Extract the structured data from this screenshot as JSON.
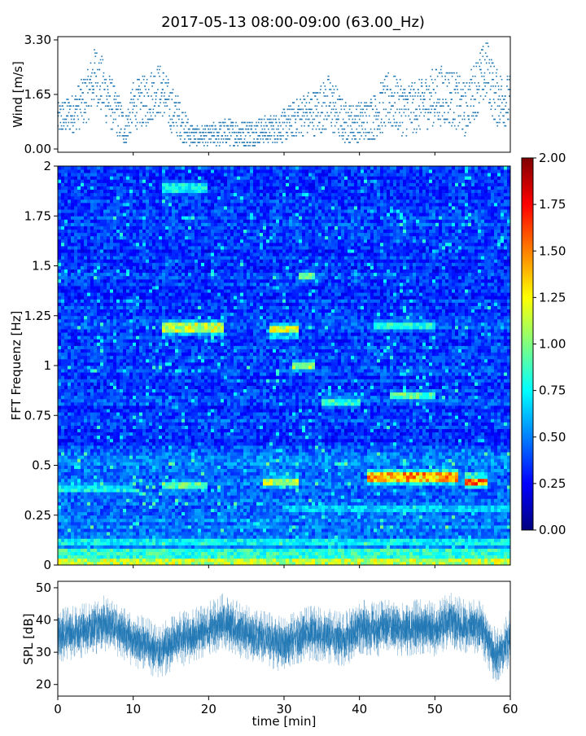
{
  "title": "2017-05-13 08:00-09:00 (63.00_Hz)",
  "colors": {
    "wind": "#1f77b4",
    "spl": "#1f77b4",
    "axis": "#000000"
  },
  "chart_data": [
    {
      "type": "scatter",
      "ylabel": "Wind [m/s]",
      "xlim": [
        0,
        60
      ],
      "ylim": [
        0.0,
        3.3
      ],
      "yticks": [
        "0.00",
        "1.65",
        "3.30"
      ],
      "x": [
        0,
        2,
        4,
        5,
        6,
        8,
        9,
        10,
        12,
        13,
        14,
        15,
        16,
        17,
        18,
        20,
        22,
        24,
        26,
        28,
        30,
        32,
        34,
        36,
        38,
        40,
        42,
        44,
        46,
        48,
        50,
        52,
        54,
        56,
        57,
        58,
        60
      ],
      "values": [
        0.9,
        1.1,
        1.6,
        2.3,
        1.8,
        1.0,
        0.6,
        1.3,
        1.5,
        1.8,
        1.7,
        1.2,
        1.0,
        0.6,
        0.4,
        0.4,
        0.5,
        0.5,
        0.5,
        0.6,
        0.7,
        1.0,
        1.1,
        1.4,
        0.8,
        0.8,
        1.0,
        1.5,
        1.2,
        1.3,
        1.6,
        1.6,
        1.2,
        2.1,
        2.4,
        1.6,
        1.4
      ],
      "spread": [
        0.5,
        0.6,
        0.8,
        0.9,
        0.9,
        0.7,
        0.5,
        0.7,
        0.8,
        0.8,
        0.8,
        0.7,
        0.6,
        0.5,
        0.3,
        0.3,
        0.4,
        0.4,
        0.4,
        0.4,
        0.5,
        0.6,
        0.7,
        0.9,
        0.6,
        0.6,
        0.7,
        0.9,
        0.8,
        0.8,
        0.9,
        0.9,
        0.8,
        0.9,
        0.9,
        0.9,
        0.8
      ]
    },
    {
      "type": "heatmap",
      "ylabel": "FFT Frequenz [Hz]",
      "xlim": [
        0,
        60
      ],
      "ylim": [
        0,
        2
      ],
      "yticks": [
        "0",
        "0.25",
        "0.5",
        "0.75",
        "1",
        "1.25",
        "1.5",
        "1.75",
        "2"
      ],
      "colorbar": {
        "range": [
          0.0,
          2.0
        ],
        "ticks": [
          "0.00",
          "0.25",
          "0.50",
          "0.75",
          "1.00",
          "1.25",
          "1.50",
          "1.75",
          "2.00"
        ],
        "colormap": "jet"
      },
      "bands": [
        {
          "f": 0.02,
          "t": [
            0,
            60
          ],
          "level": 1.2
        },
        {
          "f": 0.06,
          "t": [
            0,
            60
          ],
          "level": 0.9
        },
        {
          "f": 0.12,
          "t": [
            0,
            60
          ],
          "level": 0.8
        },
        {
          "f": 0.28,
          "t": [
            30,
            60
          ],
          "level": 0.7
        },
        {
          "f": 0.38,
          "t": [
            0,
            10
          ],
          "level": 0.8
        },
        {
          "f": 0.4,
          "t": [
            14,
            20
          ],
          "level": 1.0
        },
        {
          "f": 0.42,
          "t": [
            27,
            32
          ],
          "level": 1.2
        },
        {
          "f": 0.44,
          "t": [
            41,
            53
          ],
          "level": 1.5
        },
        {
          "f": 0.42,
          "t": [
            54,
            57
          ],
          "level": 1.6
        },
        {
          "f": 0.85,
          "t": [
            44,
            50
          ],
          "level": 1.0
        },
        {
          "f": 0.82,
          "t": [
            35,
            40
          ],
          "level": 0.9
        },
        {
          "f": 1.0,
          "t": [
            31,
            34
          ],
          "level": 1.1
        },
        {
          "f": 1.19,
          "t": [
            14,
            22
          ],
          "level": 1.2
        },
        {
          "f": 1.18,
          "t": [
            28,
            32
          ],
          "level": 1.3
        },
        {
          "f": 1.2,
          "t": [
            42,
            50
          ],
          "level": 0.9
        },
        {
          "f": 1.45,
          "t": [
            32,
            34
          ],
          "level": 1.0
        },
        {
          "f": 1.89,
          "t": [
            14,
            20
          ],
          "level": 0.8
        }
      ]
    },
    {
      "type": "line",
      "ylabel": "SPL [dB]",
      "xlabel": "time [min]",
      "xlim": [
        0,
        60
      ],
      "ylim": [
        16.4,
        52
      ],
      "yticks": [
        "20",
        "30",
        "40",
        "50"
      ],
      "xticks": [
        "0",
        "10",
        "20",
        "30",
        "40",
        "50",
        "60"
      ],
      "x": [
        0,
        2,
        4,
        6,
        8,
        10,
        12,
        13,
        14,
        16,
        18,
        20,
        22,
        24,
        26,
        28,
        30,
        32,
        34,
        36,
        38,
        40,
        42,
        44,
        46,
        48,
        50,
        52,
        54,
        56,
        57,
        58,
        59,
        60
      ],
      "values": [
        35,
        36,
        37,
        39,
        37,
        34,
        32,
        30,
        31,
        34,
        35,
        37,
        40,
        37,
        35,
        34,
        32,
        35,
        36,
        35,
        34,
        38,
        37,
        38,
        37,
        38,
        37,
        40,
        38,
        38,
        34,
        29,
        31,
        35
      ],
      "spread": [
        6,
        6,
        6,
        6,
        6,
        6,
        6,
        6,
        6,
        6,
        6,
        6,
        6,
        6,
        6,
        6,
        6,
        6,
        6,
        6,
        6,
        6,
        6,
        6,
        6,
        6,
        6,
        6,
        6,
        6,
        6,
        6,
        6,
        6
      ]
    }
  ]
}
